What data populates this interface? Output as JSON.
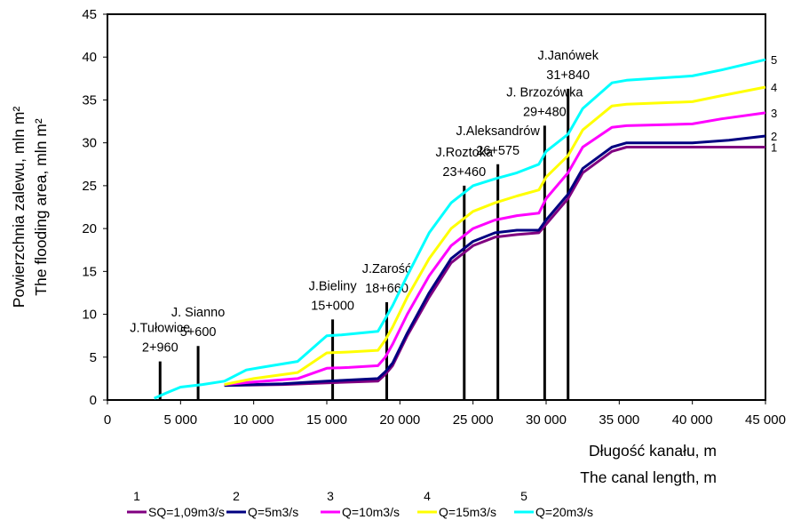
{
  "chart_data": {
    "type": "line",
    "ylabel_lines": [
      "Powierzchnia zalewu, mln m²",
      "The flooding area, mln m²"
    ],
    "xlabel_lines": [
      "Długość kanału, m",
      "The canal length, m"
    ],
    "xlim": [
      0,
      45000
    ],
    "ylim": [
      0,
      45
    ],
    "x_ticks": [
      0,
      5000,
      10000,
      15000,
      20000,
      25000,
      30000,
      35000,
      40000,
      45000
    ],
    "x_tick_labels": [
      "0",
      "5 000",
      "10 000",
      "15 000",
      "20 000",
      "25 000",
      "30 000",
      "35 000",
      "40 000",
      "45 000"
    ],
    "y_ticks": [
      0,
      5,
      10,
      15,
      20,
      25,
      30,
      35,
      40,
      45
    ],
    "y_tick_labels": [
      "0",
      "5",
      "10",
      "15",
      "20",
      "25",
      "30",
      "35",
      "40",
      "45"
    ],
    "grid": false,
    "legend_position": "bottom",
    "series": [
      {
        "id": "1",
        "name": "SQ=1,09m3/s",
        "color": "#800080",
        "x": [
          8000,
          12000,
          15000,
          18500,
          19000,
          19500,
          20500,
          22000,
          23500,
          25000,
          26500,
          28000,
          29500,
          30000,
          31500,
          32500,
          34500,
          35500,
          45000
        ],
        "y": [
          1.7,
          1.8,
          2.0,
          2.2,
          3.0,
          4.0,
          7.5,
          12.0,
          16.0,
          18.0,
          19.0,
          19.3,
          19.5,
          20.5,
          23.5,
          26.5,
          29.0,
          29.5,
          29.5
        ]
      },
      {
        "id": "2",
        "name": "Q=5m3/s",
        "color": "#000080",
        "x": [
          8000,
          12000,
          15000,
          18500,
          19000,
          19500,
          20500,
          22000,
          23500,
          25000,
          26500,
          28000,
          29500,
          30000,
          31500,
          32500,
          34500,
          35500,
          40000,
          42500,
          45000
        ],
        "y": [
          1.7,
          1.9,
          2.2,
          2.5,
          3.3,
          4.3,
          7.8,
          12.5,
          16.5,
          18.5,
          19.5,
          19.8,
          19.8,
          21.0,
          24.0,
          27.0,
          29.5,
          30.0,
          30.0,
          30.3,
          30.8
        ]
      },
      {
        "id": "3",
        "name": "Q=10m3/s",
        "color": "#ff00ff",
        "x": [
          8000,
          10000,
          13000,
          15000,
          16500,
          18500,
          19000,
          19500,
          20500,
          22000,
          23500,
          25000,
          26500,
          28000,
          29500,
          30000,
          31500,
          32500,
          34500,
          35500,
          40000,
          42000,
          45000
        ],
        "y": [
          1.8,
          2.1,
          2.5,
          3.7,
          3.8,
          4.0,
          5.0,
          6.5,
          10.0,
          14.5,
          18.0,
          20.0,
          21.0,
          21.5,
          21.8,
          23.5,
          26.5,
          29.5,
          31.8,
          32.0,
          32.2,
          32.8,
          33.5
        ]
      },
      {
        "id": "4",
        "name": "Q=15m3/s",
        "color": "#ffff00",
        "x": [
          8000,
          10000,
          13000,
          15000,
          16500,
          18500,
          19000,
          19500,
          20500,
          22000,
          23500,
          25000,
          26500,
          28000,
          29500,
          30000,
          31500,
          32500,
          34500,
          35500,
          40000,
          42000,
          45000
        ],
        "y": [
          1.8,
          2.5,
          3.2,
          5.5,
          5.6,
          5.8,
          7.0,
          8.5,
          12.0,
          16.5,
          20.0,
          22.0,
          23.0,
          23.8,
          24.5,
          26.0,
          28.5,
          31.5,
          34.3,
          34.5,
          34.8,
          35.5,
          36.5
        ]
      },
      {
        "id": "5",
        "name": "Q=20m3/s",
        "color": "#00ffff",
        "x": [
          3200,
          4000,
          5000,
          6500,
          8000,
          9500,
          10500,
          13000,
          15000,
          16000,
          18500,
          19000,
          19500,
          20500,
          22000,
          23500,
          25000,
          26500,
          28000,
          29500,
          30000,
          31500,
          32500,
          34500,
          35500,
          40000,
          42000,
          45000
        ],
        "y": [
          0.2,
          0.8,
          1.5,
          1.8,
          2.2,
          3.5,
          3.8,
          4.5,
          7.5,
          7.6,
          8.0,
          9.5,
          11.0,
          14.5,
          19.5,
          23.0,
          25.0,
          25.8,
          26.5,
          27.5,
          29.0,
          31.0,
          34.0,
          37.0,
          37.3,
          37.8,
          38.5,
          39.7
        ]
      }
    ],
    "weirs": [
      {
        "name": "J.Tułowice",
        "chainage": "2+960",
        "x": 3600,
        "height": 4.5
      },
      {
        "name": "J. Sianno",
        "chainage": "5+600",
        "x": 6200,
        "height": 6.3
      },
      {
        "name": "J.Bieliny",
        "chainage": "15+000",
        "x": 15400,
        "height": 9.4
      },
      {
        "name": "J.Zarość",
        "chainage": "18+660",
        "x": 19100,
        "height": 11.4
      },
      {
        "name": "J.Roztoka",
        "chainage": "23+460",
        "x": 24400,
        "height": 25.0
      },
      {
        "name": "J.Aleksandrów",
        "chainage": "26+575",
        "x": 26700,
        "height": 27.5
      },
      {
        "name": "J. Brzozówka",
        "chainage": "29+480",
        "x": 29900,
        "height": 32.0
      },
      {
        "name": "J.Janówek",
        "chainage": "31+840",
        "x": 31500,
        "height": 36.3
      }
    ]
  }
}
